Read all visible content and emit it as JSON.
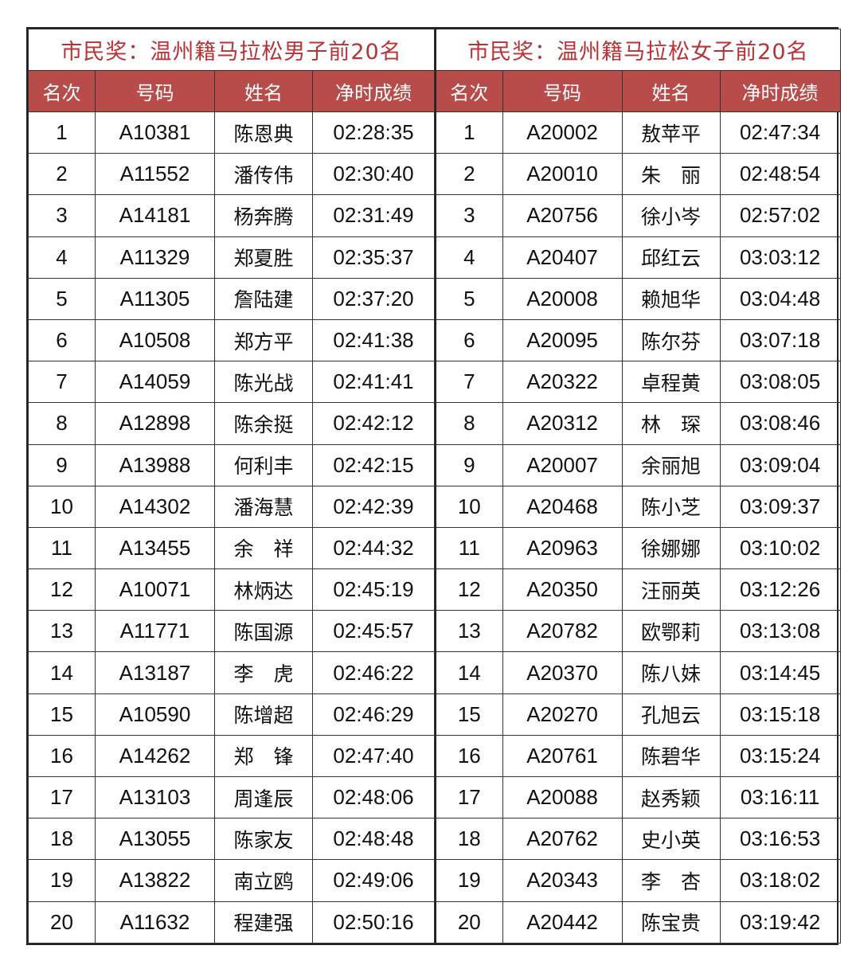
{
  "colors": {
    "title_text": "#b83236",
    "header_bg": "#b84c4b",
    "header_text": "#ffffff"
  },
  "columns": [
    "名次",
    "号码",
    "姓名",
    "净时成绩"
  ],
  "men": {
    "title": "市民奖：温州籍马拉松男子前20名",
    "rows": [
      [
        "1",
        "A10381",
        "陈恩典",
        "02:28:35"
      ],
      [
        "2",
        "A11552",
        "潘传伟",
        "02:30:40"
      ],
      [
        "3",
        "A14181",
        "杨奔腾",
        "02:31:49"
      ],
      [
        "4",
        "A11329",
        "郑夏胜",
        "02:35:37"
      ],
      [
        "5",
        "A11305",
        "詹陆建",
        "02:37:20"
      ],
      [
        "6",
        "A10508",
        "郑方平",
        "02:41:38"
      ],
      [
        "7",
        "A14059",
        "陈光战",
        "02:41:41"
      ],
      [
        "8",
        "A12898",
        "陈余挺",
        "02:42:12"
      ],
      [
        "9",
        "A13988",
        "何利丰",
        "02:42:15"
      ],
      [
        "10",
        "A14302",
        "潘海慧",
        "02:42:39"
      ],
      [
        "11",
        "A13455",
        "余　祥",
        "02:44:32"
      ],
      [
        "12",
        "A10071",
        "林炳达",
        "02:45:19"
      ],
      [
        "13",
        "A11771",
        "陈国源",
        "02:45:57"
      ],
      [
        "14",
        "A13187",
        "李　虎",
        "02:46:22"
      ],
      [
        "15",
        "A10590",
        "陈增超",
        "02:46:29"
      ],
      [
        "16",
        "A14262",
        "郑　锋",
        "02:47:40"
      ],
      [
        "17",
        "A13103",
        "周逢辰",
        "02:48:06"
      ],
      [
        "18",
        "A13055",
        "陈家友",
        "02:48:48"
      ],
      [
        "19",
        "A13822",
        "南立鸥",
        "02:49:06"
      ],
      [
        "20",
        "A11632",
        "程建强",
        "02:50:16"
      ]
    ]
  },
  "women": {
    "title": "市民奖：温州籍马拉松女子前20名",
    "rows": [
      [
        "1",
        "A20002",
        "敖苹平",
        "02:47:34"
      ],
      [
        "2",
        "A20010",
        "朱　丽",
        "02:48:54"
      ],
      [
        "3",
        "A20756",
        "徐小岑",
        "02:57:02"
      ],
      [
        "4",
        "A20407",
        "邱红云",
        "03:03:12"
      ],
      [
        "5",
        "A20008",
        "赖旭华",
        "03:04:48"
      ],
      [
        "6",
        "A20095",
        "陈尔芬",
        "03:07:18"
      ],
      [
        "7",
        "A20322",
        "卓程黄",
        "03:08:05"
      ],
      [
        "8",
        "A20312",
        "林　琛",
        "03:08:46"
      ],
      [
        "9",
        "A20007",
        "余丽旭",
        "03:09:04"
      ],
      [
        "10",
        "A20468",
        "陈小芝",
        "03:09:37"
      ],
      [
        "11",
        "A20963",
        "徐娜娜",
        "03:10:02"
      ],
      [
        "12",
        "A20350",
        "汪丽英",
        "03:12:26"
      ],
      [
        "13",
        "A20782",
        "欧鄂莉",
        "03:13:08"
      ],
      [
        "14",
        "A20370",
        "陈八妹",
        "03:14:45"
      ],
      [
        "15",
        "A20270",
        "孔旭云",
        "03:15:18"
      ],
      [
        "16",
        "A20761",
        "陈碧华",
        "03:15:24"
      ],
      [
        "17",
        "A20088",
        "赵秀颖",
        "03:16:11"
      ],
      [
        "18",
        "A20762",
        "史小英",
        "03:16:53"
      ],
      [
        "19",
        "A20343",
        "李　杏",
        "03:18:02"
      ],
      [
        "20",
        "A20442",
        "陈宝贵",
        "03:19:42"
      ]
    ]
  }
}
